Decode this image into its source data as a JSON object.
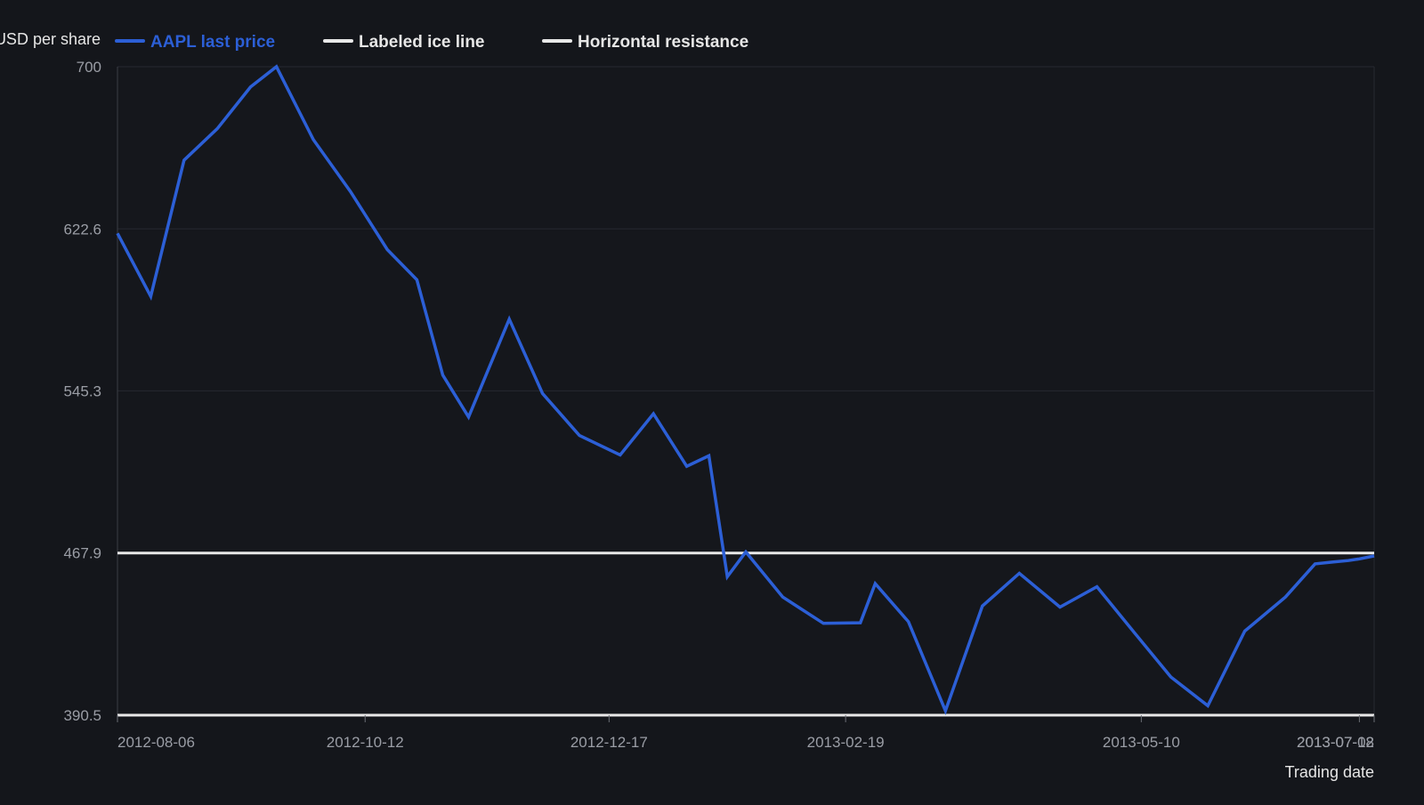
{
  "colors": {
    "background": "#14161b",
    "plot_background": "#15171c",
    "series_line": "#2c5fd6",
    "reference_line": "#e8e8e8",
    "grid": "#262930",
    "tick_text": "#9a9da5",
    "axis_title_text": "#e6e6e6",
    "legend_text": "#e6e6e6"
  },
  "chart_data": {
    "type": "line",
    "title": "",
    "xlabel": "Trading date",
    "ylabel": "USD per share",
    "ylim": [
      390.5,
      700
    ],
    "y_ticks": [
      700,
      622.6,
      545.3,
      467.9,
      390.5
    ],
    "y_tick_labels": [
      "700",
      "622.6",
      "545.3",
      "467.9",
      "390.5"
    ],
    "x_ticks": [
      "2012-08-06",
      "2012-10-12",
      "2012-12-17",
      "2013-02-19",
      "2013-05-10",
      "2013-07-08",
      "2013-07-12"
    ],
    "x_tick_labels": [
      "2012-08-06",
      "2012-10-12",
      "2012-12-17",
      "2013-02-19",
      "2013-05-10",
      "2013-07-08",
      "2013-07-12"
    ],
    "xlim": [
      "2012-08-06",
      "2013-07-12"
    ],
    "grid": true,
    "legend_position": "top-left",
    "series": [
      {
        "name": "AAPL last price",
        "x": [
          "2012-08-06",
          "2012-08-15",
          "2012-08-24",
          "2012-09-02",
          "2012-09-11",
          "2012-09-18",
          "2012-09-28",
          "2012-10-08",
          "2012-10-18",
          "2012-10-26",
          "2012-11-02",
          "2012-11-09",
          "2012-11-20",
          "2012-11-29",
          "2012-12-09",
          "2012-12-20",
          "2012-12-29",
          "2013-01-07",
          "2013-01-13",
          "2013-01-18",
          "2013-01-23",
          "2013-02-02",
          "2013-02-13",
          "2013-02-23",
          "2013-02-27",
          "2013-03-08",
          "2013-03-18",
          "2013-03-28",
          "2013-04-07",
          "2013-04-18",
          "2013-04-28",
          "2013-05-08",
          "2013-05-18",
          "2013-05-28",
          "2013-06-07",
          "2013-06-18",
          "2013-06-26",
          "2013-07-01",
          "2013-07-05",
          "2013-07-08",
          "2013-07-12"
        ],
        "values": [
          620.5,
          590.4,
          655.4,
          670.4,
          690.3,
          700.0,
          665.2,
          640.5,
          612.7,
          598.3,
          552.8,
          532.8,
          579.5,
          544.0,
          524.0,
          514.7,
          534.4,
          509.3,
          514.3,
          456.6,
          468.4,
          446.9,
          434.3,
          434.6,
          453.3,
          435.1,
          392.6,
          442.6,
          458.2,
          442.1,
          451.8,
          430.1,
          408.7,
          395.0,
          430.6,
          446.9,
          462.7,
          463.6,
          464.3,
          465.1,
          466.5
        ]
      }
    ],
    "reference_lines": [
      {
        "name": "Labeled ice line",
        "value": 467.9
      },
      {
        "name": "Horizontal resistance",
        "value": 390.5
      }
    ]
  }
}
